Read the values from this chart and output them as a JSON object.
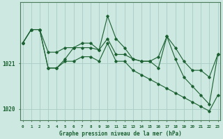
{
  "title": "Graphe pression niveau de la mer (hPa)",
  "bg_color": "#cce8e0",
  "grid_color": "#aaccc4",
  "line_color": "#1a6030",
  "marker_color": "#1a6030",
  "x_label_color": "#1a6030",
  "ylabel_color": "#1a6030",
  "hours": [
    0,
    1,
    2,
    3,
    4,
    5,
    6,
    7,
    8,
    9,
    10,
    11,
    12,
    13,
    14,
    15,
    16,
    17,
    18,
    19,
    20,
    21,
    22,
    23
  ],
  "series1": [
    1021.45,
    1021.75,
    1021.75,
    1021.25,
    1021.25,
    1021.35,
    1021.35,
    1021.45,
    1021.45,
    1021.3,
    1021.55,
    1021.2,
    1021.2,
    1021.1,
    1021.05,
    1021.05,
    1021.15,
    1021.6,
    1021.35,
    1021.05,
    1020.85,
    1020.85,
    1020.7,
    1021.2
  ],
  "series2": [
    1021.45,
    1021.75,
    1021.75,
    1020.9,
    1020.9,
    1021.1,
    1021.35,
    1021.35,
    1021.35,
    1021.3,
    1022.05,
    1021.55,
    1021.35,
    1021.1,
    1021.05,
    1021.05,
    1020.9,
    1021.6,
    1021.1,
    1020.7,
    1020.5,
    1020.3,
    1020.1,
    1021.2
  ],
  "series3": [
    1021.45,
    1021.75,
    1021.75,
    1020.9,
    1020.9,
    1021.05,
    1021.05,
    1021.15,
    1021.15,
    1021.05,
    1021.45,
    1021.05,
    1021.05,
    1020.85,
    1020.75,
    1020.65,
    1020.55,
    1020.45,
    1020.35,
    1020.25,
    1020.15,
    1020.05,
    1019.95,
    1020.3
  ],
  "ylim_min": 1019.75,
  "ylim_max": 1022.35,
  "yticks": [
    1020,
    1021
  ],
  "figsize": [
    3.2,
    2.0
  ],
  "dpi": 100
}
